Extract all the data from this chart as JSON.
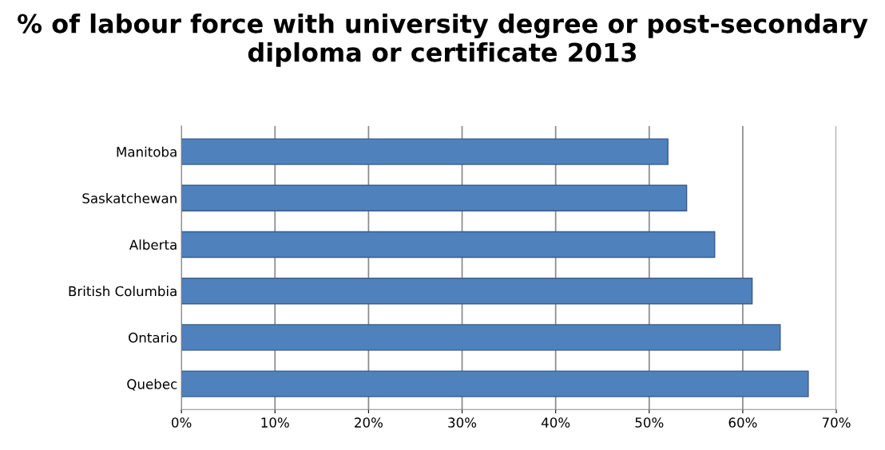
{
  "chart_data": {
    "type": "bar",
    "orientation": "horizontal",
    "title": "% of labour force with university degree or post-secondary diploma or certificate 2013",
    "categories": [
      "Manitoba",
      "Saskatchewan",
      "Alberta",
      "British Columbia",
      "Ontario",
      "Quebec"
    ],
    "values": [
      52,
      54,
      57,
      61,
      64,
      67
    ],
    "color": "#4f81bd",
    "xlim": [
      0,
      70
    ],
    "xticks": [
      {
        "value": 0,
        "label": "0%"
      },
      {
        "value": 10,
        "label": "10%"
      },
      {
        "value": 20,
        "label": "20%"
      },
      {
        "value": 30,
        "label": "30%"
      },
      {
        "value": 40,
        "label": "40%"
      },
      {
        "value": 50,
        "label": "50%"
      },
      {
        "value": 60,
        "label": "60%"
      },
      {
        "value": 70,
        "label": "70%"
      }
    ],
    "grid": "x"
  }
}
